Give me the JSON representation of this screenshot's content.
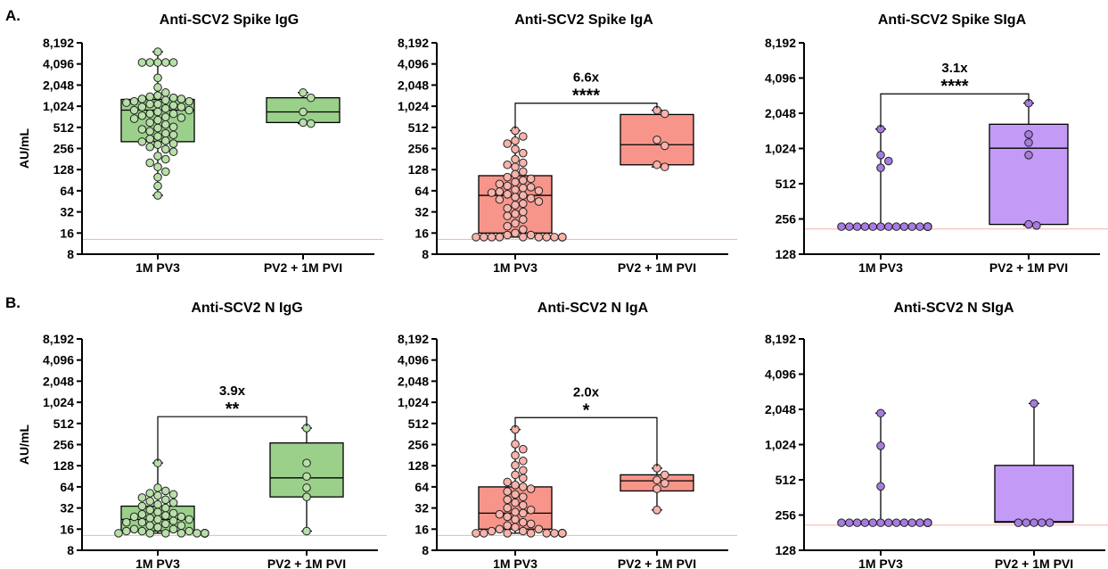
{
  "panel_labels": [
    "A.",
    "B."
  ],
  "chart_data": [
    {
      "type": "box",
      "title": "Anti-SCV2 Spike IgG",
      "ylabel": "AU/mL",
      "yscale": "log2",
      "ylim": [
        8,
        8192
      ],
      "yticks": [
        8,
        16,
        32,
        64,
        128,
        256,
        512,
        1024,
        2048,
        4096,
        8192
      ],
      "ytick_labels": [
        "8",
        "16",
        "32",
        "64",
        "128",
        "256",
        "512",
        "1,024",
        "2,048",
        "4,096",
        "8,192"
      ],
      "reference_line": 13,
      "categories": [
        "1M PV3",
        "PV2 + 1M PVI"
      ],
      "colors": [
        "#9bd08b",
        "#9bd08b"
      ],
      "point_color": "#b7dfa8",
      "series": [
        {
          "name": "1M PV3",
          "box": {
            "min": 55,
            "q1": 320,
            "median": 900,
            "q3": 1280,
            "max": 6100
          },
          "points": [
            6100,
            4300,
            4300,
            4300,
            4300,
            4300,
            2600,
            1900,
            1600,
            1450,
            1400,
            1350,
            1300,
            1300,
            1250,
            1200,
            1200,
            1150,
            1100,
            1100,
            1050,
            1000,
            1000,
            950,
            900,
            900,
            850,
            800,
            800,
            750,
            720,
            700,
            680,
            650,
            600,
            560,
            520,
            500,
            480,
            450,
            420,
            400,
            380,
            350,
            330,
            320,
            300,
            290,
            270,
            250,
            230,
            200,
            180,
            160,
            140,
            120,
            100,
            75,
            55
          ]
        },
        {
          "name": "PV2 + 1M PVI",
          "box": {
            "min": 580,
            "q1": 600,
            "median": 850,
            "q3": 1350,
            "max": 1600
          },
          "points": [
            1600,
            1350,
            850,
            600,
            580
          ]
        }
      ]
    },
    {
      "type": "box",
      "title": "Anti-SCV2 Spike IgA",
      "ylabel": "",
      "yscale": "log2",
      "ylim": [
        8,
        8192
      ],
      "yticks": [
        8,
        16,
        32,
        64,
        128,
        256,
        512,
        1024,
        2048,
        4096,
        8192
      ],
      "ytick_labels": [
        "8",
        "16",
        "32",
        "64",
        "128",
        "256",
        "512",
        "1,024",
        "2,048",
        "4,096",
        "8,192"
      ],
      "reference_line": 13,
      "categories": [
        "1M PV3",
        "PV2 + 1M PVI"
      ],
      "colors": [
        "#f7958a",
        "#f7958a"
      ],
      "point_color": "#f9b3ab",
      "annotation": {
        "fold": "6.6x",
        "stars": "****",
        "bracket_y": 1130
      },
      "series": [
        {
          "name": "1M PV3",
          "box": {
            "min": 14,
            "q1": 16,
            "median": 55,
            "q3": 105,
            "max": 460
          },
          "points": [
            460,
            380,
            330,
            300,
            250,
            220,
            180,
            160,
            150,
            140,
            120,
            110,
            100,
            95,
            90,
            85,
            80,
            75,
            72,
            70,
            66,
            64,
            62,
            60,
            57,
            55,
            52,
            50,
            48,
            45,
            42,
            40,
            36,
            32,
            30,
            28,
            25,
            22,
            20,
            18,
            16,
            15,
            15,
            14,
            14,
            14,
            14,
            14,
            14,
            14,
            14,
            14,
            14,
            14,
            14
          ]
        },
        {
          "name": "PV2 + 1M PVI",
          "box": {
            "min": 140,
            "q1": 150,
            "median": 290,
            "q3": 780,
            "max": 900
          },
          "points": [
            900,
            800,
            340,
            280,
            150,
            140
          ]
        }
      ]
    },
    {
      "type": "box",
      "title": "Anti-SCV2 Spike SIgA",
      "ylabel": "",
      "yscale": "log2",
      "ylim": [
        128,
        8192
      ],
      "yticks": [
        128,
        256,
        512,
        1024,
        2048,
        4096,
        8192
      ],
      "ytick_labels": [
        "128",
        "256",
        "512",
        "1,024",
        "2,048",
        "4,096",
        "8,192"
      ],
      "reference_line": 210,
      "categories": [
        "1M PV3",
        "PV2 + 1M PVI"
      ],
      "colors": [
        "#c39bf6",
        "#c39bf6"
      ],
      "point_color": "#a77be0",
      "annotation": {
        "fold": "3.1x",
        "stars": "****",
        "bracket_y": 3000
      },
      "series": [
        {
          "name": "1M PV3",
          "box": {
            "min": 220,
            "q1": 220,
            "median": 220,
            "q3": 220,
            "max": 1500
          },
          "points": [
            1500,
            900,
            800,
            700,
            220,
            220,
            220,
            220,
            220,
            220,
            220,
            220,
            220,
            220,
            220,
            220,
            220,
            220,
            220,
            220,
            220,
            220,
            220,
            220,
            220,
            220,
            220
          ]
        },
        {
          "name": "PV2 + 1M PVI",
          "box": {
            "min": 225,
            "q1": 230,
            "median": 1030,
            "q3": 1650,
            "max": 2500
          },
          "points": [
            2500,
            1350,
            1150,
            900,
            230,
            225
          ]
        }
      ]
    },
    {
      "type": "box",
      "title": "Anti-SCV2 N IgG",
      "ylabel": "AU/mL",
      "yscale": "log2",
      "ylim": [
        8,
        8192
      ],
      "yticks": [
        8,
        16,
        32,
        64,
        128,
        256,
        512,
        1024,
        2048,
        4096,
        8192
      ],
      "ytick_labels": [
        "8",
        "16",
        "32",
        "64",
        "128",
        "256",
        "512",
        "1,024",
        "2,048",
        "4,096",
        "8,192"
      ],
      "reference_line": 13,
      "categories": [
        "1M PV3",
        "PV2 + 1M PVI"
      ],
      "colors": [
        "#9bd08b",
        "#9bd08b"
      ],
      "point_color": "#b7dfa8",
      "annotation": {
        "fold": "3.9x",
        "stars": "**",
        "bracket_y": 640
      },
      "series": [
        {
          "name": "1M PV3",
          "box": {
            "min": 14,
            "q1": 15,
            "median": 22,
            "q3": 34,
            "max": 140
          },
          "points": [
            140,
            62,
            56,
            52,
            50,
            48,
            45,
            42,
            40,
            38,
            36,
            34,
            32,
            30,
            28,
            27,
            26,
            25,
            24,
            24,
            23,
            22,
            22,
            21,
            20,
            20,
            19,
            18,
            18,
            17,
            16,
            16,
            15,
            15,
            15,
            14,
            14,
            14,
            14,
            14,
            14,
            14,
            14,
            14,
            14,
            14,
            14,
            14,
            14,
            14,
            14,
            14,
            14
          ]
        },
        {
          "name": "PV2 + 1M PVI",
          "box": {
            "min": 15,
            "q1": 46,
            "median": 86,
            "q3": 270,
            "max": 440
          },
          "points": [
            440,
            140,
            90,
            62,
            46,
            15
          ]
        }
      ]
    },
    {
      "type": "box",
      "title": "Anti-SCV2 N IgA",
      "ylabel": "",
      "yscale": "log2",
      "ylim": [
        8,
        8192
      ],
      "yticks": [
        8,
        16,
        32,
        64,
        128,
        256,
        512,
        1024,
        2048,
        4096,
        8192
      ],
      "ytick_labels": [
        "8",
        "16",
        "32",
        "64",
        "128",
        "256",
        "512",
        "1,024",
        "2,048",
        "4,096",
        "8,192"
      ],
      "reference_line": 13,
      "categories": [
        "1M PV3",
        "PV2 + 1M PVI"
      ],
      "colors": [
        "#f7958a",
        "#f7958a"
      ],
      "point_color": "#f9b3ab",
      "annotation": {
        "fold": "2.0x",
        "stars": "*",
        "bracket_y": 620
      },
      "series": [
        {
          "name": "1M PV3",
          "box": {
            "min": 14,
            "q1": 16,
            "median": 27,
            "q3": 64,
            "max": 420
          },
          "points": [
            420,
            260,
            220,
            180,
            150,
            130,
            110,
            95,
            85,
            75,
            68,
            64,
            60,
            55,
            50,
            46,
            42,
            38,
            35,
            32,
            30,
            28,
            27,
            26,
            24,
            22,
            20,
            19,
            18,
            17,
            16,
            16,
            15,
            15,
            14,
            14,
            14,
            14,
            14,
            14,
            14,
            14,
            14,
            14,
            14,
            14,
            14,
            14,
            14,
            14,
            14,
            14,
            14
          ]
        },
        {
          "name": "PV2 + 1M PVI",
          "box": {
            "min": 30,
            "q1": 56,
            "median": 78,
            "q3": 95,
            "max": 118
          },
          "points": [
            118,
            95,
            80,
            72,
            60,
            30
          ]
        }
      ]
    },
    {
      "type": "box",
      "title": "Anti-SCV2 N SIgA",
      "ylabel": "",
      "yscale": "log2",
      "ylim": [
        128,
        8192
      ],
      "yticks": [
        128,
        256,
        512,
        1024,
        2048,
        4096,
        8192
      ],
      "ytick_labels": [
        "128",
        "256",
        "512",
        "1,024",
        "2,048",
        "4,096",
        "8,192"
      ],
      "reference_line": 210,
      "categories": [
        "1M PV3",
        "PV2 + 1M PVI"
      ],
      "colors": [
        "#c39bf6",
        "#c39bf6"
      ],
      "point_color": "#a77be0",
      "series": [
        {
          "name": "1M PV3",
          "box": {
            "min": 220,
            "q1": 220,
            "median": 220,
            "q3": 220,
            "max": 1900
          },
          "points": [
            1900,
            1000,
            450,
            220,
            220,
            220,
            220,
            220,
            220,
            220,
            220,
            220,
            220,
            220,
            220,
            220,
            220,
            220,
            220,
            220,
            220,
            220,
            220,
            220,
            220,
            220
          ]
        },
        {
          "name": "PV2 + 1M PVI",
          "box": {
            "min": 220,
            "q1": 222,
            "median": 225,
            "q3": 680,
            "max": 2300
          },
          "points": [
            2300,
            220,
            220,
            220,
            220,
            220
          ]
        }
      ]
    }
  ]
}
